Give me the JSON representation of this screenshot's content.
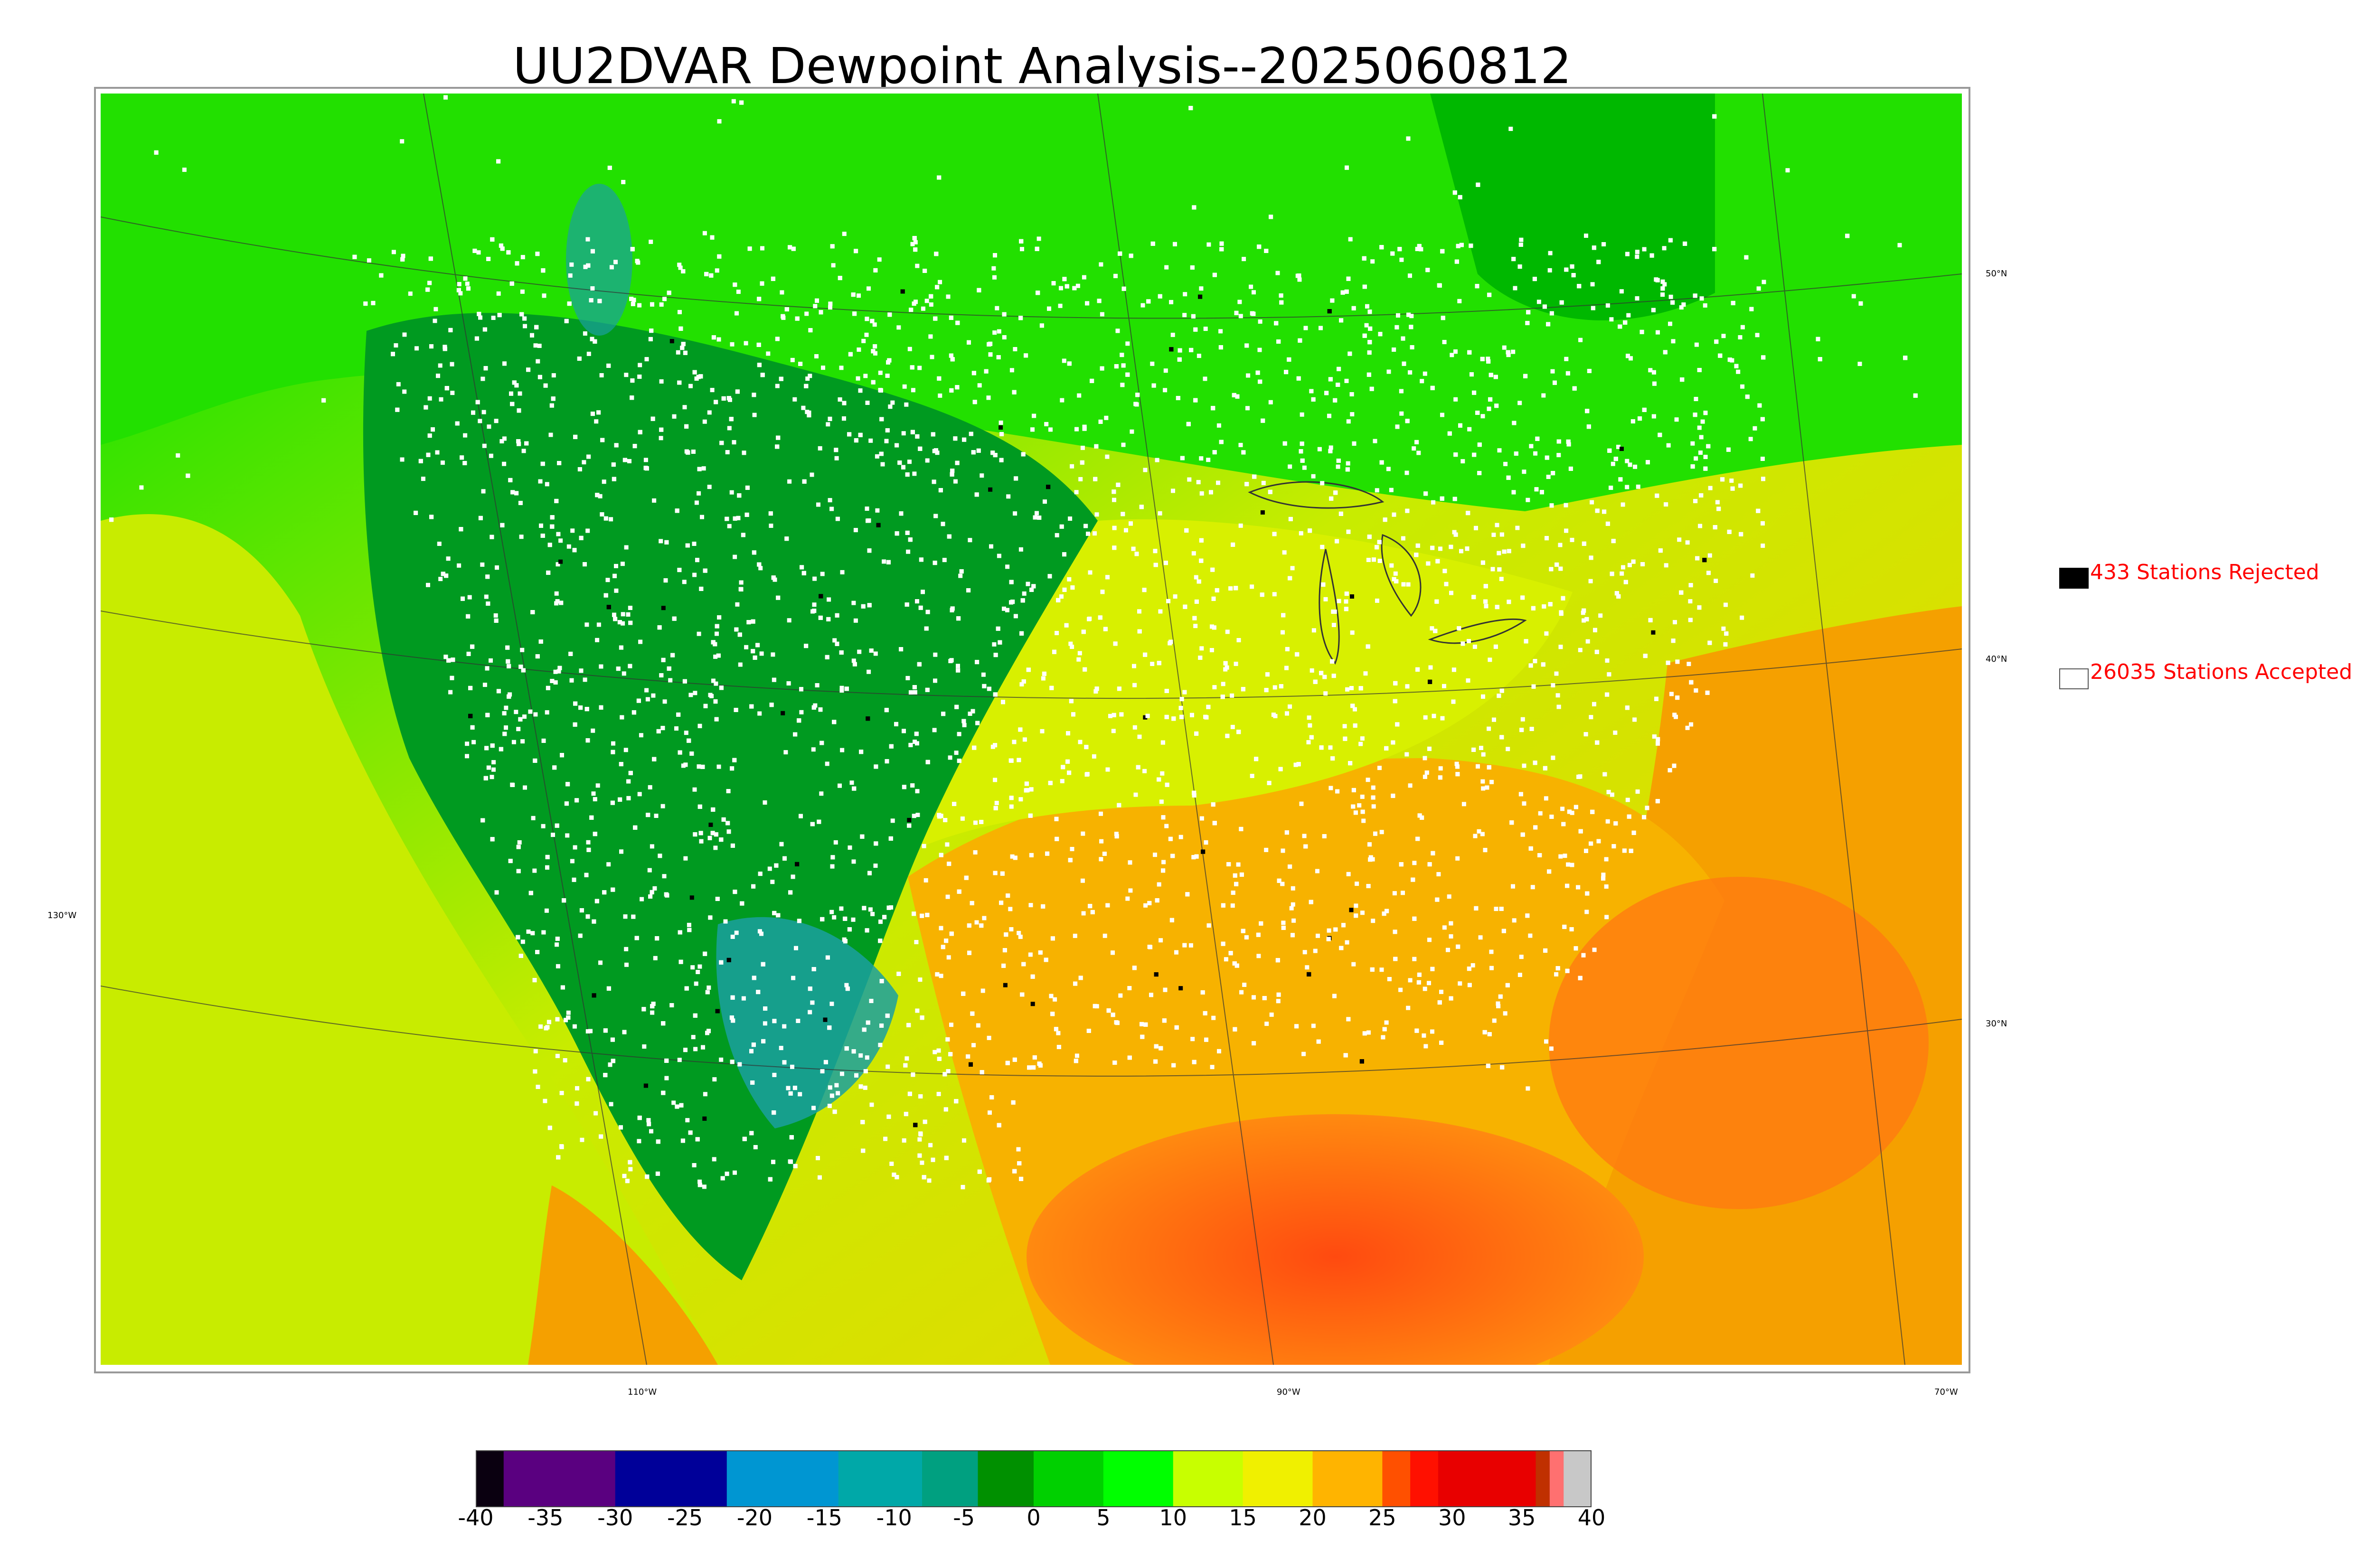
{
  "title": "UU2DVAR Dewpoint Analysis--2025060812",
  "legend": {
    "rejected": {
      "label": "433 Stations Rejected",
      "color": "#000000"
    },
    "accepted": {
      "label": "26035 Stations Accepted",
      "color": "#ffffff"
    },
    "text_color": "#ff0000"
  },
  "graticule": {
    "latitudes": [
      "50°N",
      "40°N",
      "30°N"
    ],
    "longitudes": [
      "130°W",
      "110°W",
      "90°W",
      "70°W"
    ]
  },
  "colorbar": {
    "ticks": [
      "-40",
      "-35",
      "-30",
      "-25",
      "-20",
      "-15",
      "-10",
      "-5",
      "0",
      "5",
      "10",
      "15",
      "20",
      "25",
      "30",
      "35",
      "40"
    ],
    "range": [
      -40,
      40
    ],
    "colors": [
      {
        "from": -40,
        "to": -38,
        "color": "#0a0010"
      },
      {
        "from": -38,
        "to": -30,
        "color": "#5a0080"
      },
      {
        "from": -30,
        "to": -22,
        "color": "#000099"
      },
      {
        "from": -22,
        "to": -14,
        "color": "#0096d2"
      },
      {
        "from": -14,
        "to": -8,
        "color": "#00a8a8"
      },
      {
        "from": -8,
        "to": -4,
        "color": "#00a080"
      },
      {
        "from": -4,
        "to": 0,
        "color": "#009000"
      },
      {
        "from": 0,
        "to": 5,
        "color": "#00d000"
      },
      {
        "from": 5,
        "to": 10,
        "color": "#00ff00"
      },
      {
        "from": 10,
        "to": 15,
        "color": "#c8ff00"
      },
      {
        "from": 15,
        "to": 20,
        "color": "#f0f000"
      },
      {
        "from": 20,
        "to": 25,
        "color": "#ffb400"
      },
      {
        "from": 25,
        "to": 27,
        "color": "#ff5000"
      },
      {
        "from": 27,
        "to": 29,
        "color": "#ff1000"
      },
      {
        "from": 29,
        "to": 36,
        "color": "#e80000"
      },
      {
        "from": 36,
        "to": 37,
        "color": "#c03000"
      },
      {
        "from": 37,
        "to": 38,
        "color": "#ff7070"
      },
      {
        "from": 38,
        "to": 40,
        "color": "#c8c8c8"
      }
    ]
  },
  "colors": {
    "canada_green": "#22e000",
    "dry_west": "#009a20",
    "very_dry": "#1aa0a0",
    "pacific_yellow": "#c8ec00",
    "humid_orange": "#f5a000",
    "gulf_red": "#ff5a10",
    "station_accepted": "#ffffff",
    "station_rejected": "#000000"
  }
}
